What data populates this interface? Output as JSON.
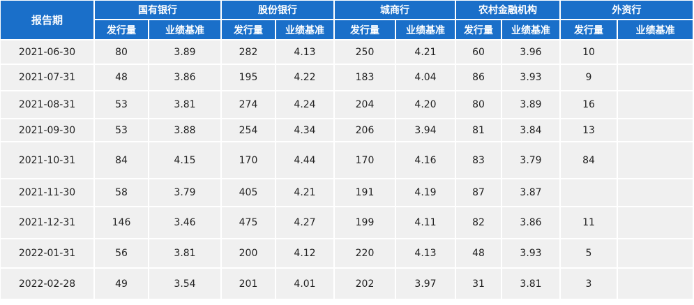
{
  "table": {
    "period_header": "报告期",
    "groups": [
      "国有银行",
      "股份银行",
      "城商行",
      "农村金融机构",
      "外资行"
    ],
    "sub_headers": [
      "发行量",
      "业绩基准"
    ],
    "rows": [
      {
        "period": "2021-06-30",
        "cells": [
          "80",
          "3.89",
          "282",
          "4.13",
          "250",
          "4.21",
          "60",
          "3.96",
          "10",
          ""
        ]
      },
      {
        "period": "2021-07-31",
        "cells": [
          "48",
          "3.86",
          "195",
          "4.22",
          "183",
          "4.04",
          "86",
          "3.93",
          "9",
          ""
        ]
      },
      {
        "period": "2021-08-31",
        "cells": [
          "53",
          "3.81",
          "274",
          "4.24",
          "204",
          "4.20",
          "80",
          "3.89",
          "16",
          ""
        ]
      },
      {
        "period": "2021-09-30",
        "cells": [
          "53",
          "3.88",
          "254",
          "4.34",
          "206",
          "3.94",
          "81",
          "3.84",
          "13",
          ""
        ]
      },
      {
        "period": "2021-10-31",
        "cells": [
          "84",
          "4.15",
          "170",
          "4.44",
          "170",
          "4.16",
          "83",
          "3.79",
          "84",
          ""
        ]
      },
      {
        "period": "2021-11-30",
        "cells": [
          "58",
          "3.79",
          "405",
          "4.21",
          "191",
          "4.19",
          "87",
          "3.87",
          "",
          ""
        ]
      },
      {
        "period": "2021-12-31",
        "cells": [
          "146",
          "3.46",
          "475",
          "4.27",
          "199",
          "4.11",
          "82",
          "3.86",
          "11",
          ""
        ]
      },
      {
        "period": "2022-01-31",
        "cells": [
          "56",
          "3.81",
          "200",
          "4.12",
          "220",
          "4.13",
          "48",
          "3.93",
          "5",
          ""
        ]
      },
      {
        "period": "2022-02-28",
        "cells": [
          "49",
          "3.54",
          "201",
          "4.01",
          "202",
          "3.97",
          "31",
          "3.81",
          "3",
          ""
        ]
      }
    ]
  }
}
